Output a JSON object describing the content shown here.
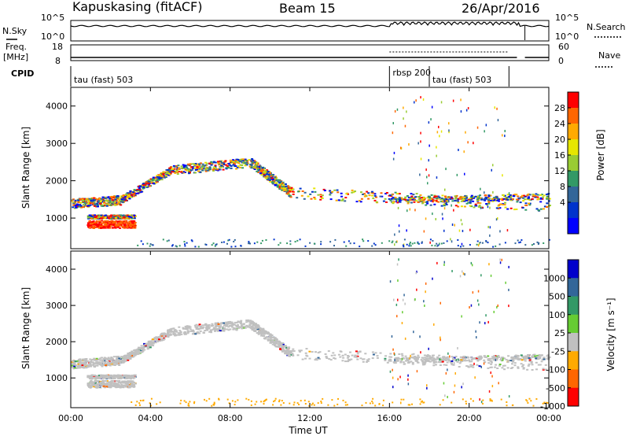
{
  "header": {
    "station": "Kapuskasing (fitACF)",
    "beam": "Beam 15",
    "date": "26/Apr/2016"
  },
  "aux_panels": {
    "nsky_label": "N.Sky",
    "nsearch_label": "N.Search",
    "freq_label_line1": "Freq.",
    "freq_label_line2": "[MHz]",
    "nave_label": "Nave",
    "cpid_label": "CPID",
    "noise_ticks_left": [
      "10^5",
      "10^0"
    ],
    "noise_ticks_right": [
      "10^5",
      "10^0"
    ],
    "freq_ticks": [
      "18",
      "8"
    ],
    "nave_ticks": [
      "60",
      "0"
    ],
    "cpid_segments": [
      {
        "label": "tau (fast) 503",
        "start_h": 0,
        "end_h": 16
      },
      {
        "label": "rbsp 200",
        "start_h": 16,
        "end_h": 18
      },
      {
        "label": "tau (fast) 503",
        "start_h": 18,
        "end_h": 22
      }
    ]
  },
  "chart_data": [
    {
      "type": "heatmap",
      "name": "power-panel",
      "ylabel": "Slant Range [km]",
      "colorbar_label": "Power [dB]",
      "colorbar_ticks": [
        "28",
        "24",
        "20",
        "16",
        "12",
        "8",
        "4"
      ],
      "colors": [
        "#ff0000",
        "#ff6600",
        "#ffaa00",
        "#e6e600",
        "#99cc33",
        "#339966",
        "#336699",
        "#0033cc",
        "#0000ff"
      ],
      "yticks": [
        "4000",
        "3000",
        "2000",
        "1000"
      ],
      "ylim": [
        180,
        4500
      ]
    },
    {
      "type": "heatmap",
      "name": "velocity-panel",
      "ylabel": "Slant Range [km]",
      "colorbar_label": "Velocity [m s⁻¹]",
      "colorbar_ticks": [
        "1000",
        "500",
        "100",
        "25",
        "-25",
        "-100",
        "-500",
        "-1000"
      ],
      "colors": [
        "#0000cc",
        "#336699",
        "#339966",
        "#66cc33",
        "#c0c0c0",
        "#ffaa00",
        "#ff6600",
        "#ff0000"
      ],
      "yticks": [
        "4000",
        "3000",
        "2000",
        "1000"
      ],
      "ylim": [
        180,
        4500
      ]
    }
  ],
  "time_axis": {
    "label": "Time UT",
    "ticks": [
      "00:00",
      "04:00",
      "08:00",
      "12:00",
      "16:00",
      "20:00",
      "00:00"
    ]
  }
}
